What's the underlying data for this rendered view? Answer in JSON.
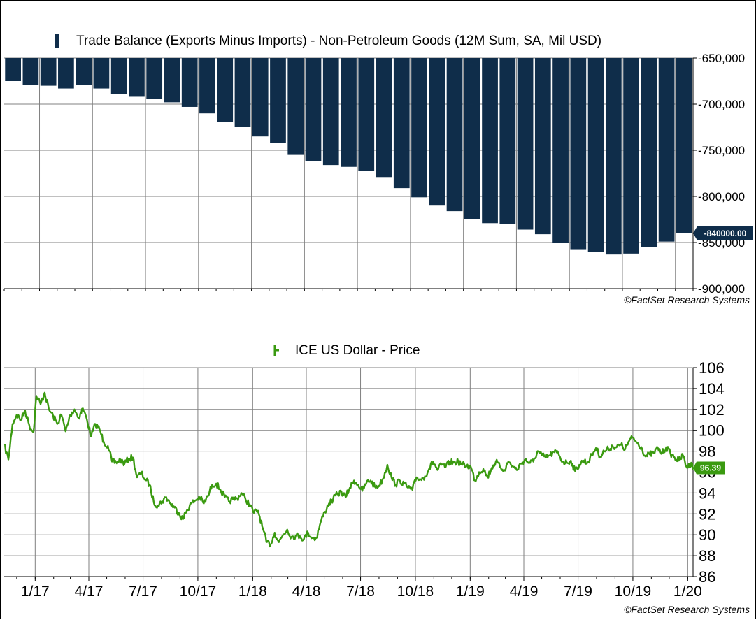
{
  "copyright": "©FactSet Research Systems",
  "chart_data": [
    {
      "type": "bar",
      "title": "Trade Balance (Exports Minus Imports) - Non-Petroleum Goods (12M Sum, SA, Mil USD)",
      "legend": "Trade Balance (Exports Minus Imports) - Non-Petroleum Goods (12M Sum, SA, Mil USD)",
      "color": "#0f2d4a",
      "ylim": [
        -900000,
        -650000
      ],
      "yticks": [
        -650000,
        -700000,
        -750000,
        -800000,
        -850000,
        -900000
      ],
      "ytick_labels": [
        "-650,000",
        "-700,000",
        "-750,000",
        "-800,000",
        "-850,000",
        "-900,000"
      ],
      "x": [
        "2016-11",
        "2016-12",
        "2017-01",
        "2017-02",
        "2017-03",
        "2017-04",
        "2017-05",
        "2017-06",
        "2017-07",
        "2017-08",
        "2017-09",
        "2017-10",
        "2017-11",
        "2017-12",
        "2018-01",
        "2018-02",
        "2018-03",
        "2018-04",
        "2018-05",
        "2018-06",
        "2018-07",
        "2018-08",
        "2018-09",
        "2018-10",
        "2018-11",
        "2018-12",
        "2019-01",
        "2019-02",
        "2019-03",
        "2019-04",
        "2019-05",
        "2019-06",
        "2019-07",
        "2019-08",
        "2019-09",
        "2019-10",
        "2019-11",
        "2019-12",
        "2020-01"
      ],
      "values": [
        -675000,
        -679000,
        -680000,
        -683000,
        -679000,
        -683000,
        -689000,
        -692000,
        -694000,
        -698000,
        -703000,
        -710000,
        -719000,
        -725000,
        -735000,
        -742000,
        -755000,
        -762000,
        -766000,
        -768000,
        -772000,
        -779000,
        -791000,
        -801000,
        -810000,
        -816000,
        -825000,
        -829000,
        -830000,
        -836000,
        -841000,
        -850000,
        -858000,
        -860000,
        -863000,
        -862000,
        -855000,
        -849000,
        -840000
      ],
      "last_value_label": "-840000.00",
      "grid": true
    },
    {
      "type": "line",
      "title": "ICE US Dollar - Price",
      "legend": "ICE US Dollar - Price",
      "color": "#3a9a10",
      "ylim": [
        86,
        106
      ],
      "yticks": [
        86,
        88,
        90,
        92,
        94,
        96,
        98,
        100,
        102,
        104,
        106
      ],
      "ytick_labels": [
        "86",
        "88",
        "90",
        "92",
        "94",
        "96",
        "98",
        "100",
        "102",
        "104",
        "106"
      ],
      "x_labels": [
        "1/17",
        "4/17",
        "7/17",
        "10/17",
        "1/18",
        "4/18",
        "7/18",
        "10/18",
        "1/19",
        "4/19",
        "7/19",
        "10/19",
        "1/20"
      ],
      "x_label_dates": [
        "2017-01-01",
        "2017-04-01",
        "2017-07-01",
        "2017-10-01",
        "2018-01-01",
        "2018-04-01",
        "2018-07-01",
        "2018-10-01",
        "2019-01-01",
        "2019-04-01",
        "2019-07-01",
        "2019-10-01",
        "2020-01-01"
      ],
      "xlim": [
        "2016-11-10",
        "2020-01-10"
      ],
      "points": [
        [
          "2016-11-10",
          98.6
        ],
        [
          "2016-11-17",
          97.2
        ],
        [
          "2016-11-24",
          100.6
        ],
        [
          "2016-12-01",
          101.5
        ],
        [
          "2016-12-08",
          101.0
        ],
        [
          "2016-12-15",
          101.9
        ],
        [
          "2016-12-22",
          100.5
        ],
        [
          "2016-12-29",
          99.8
        ],
        [
          "2017-01-03",
          103.3
        ],
        [
          "2017-01-10",
          102.5
        ],
        [
          "2017-01-17",
          103.6
        ],
        [
          "2017-01-24",
          102.0
        ],
        [
          "2017-01-31",
          101.4
        ],
        [
          "2017-02-07",
          100.6
        ],
        [
          "2017-02-14",
          101.5
        ],
        [
          "2017-02-21",
          99.9
        ],
        [
          "2017-03-01",
          101.5
        ],
        [
          "2017-03-08",
          102.0
        ],
        [
          "2017-03-15",
          101.2
        ],
        [
          "2017-03-22",
          102.1
        ],
        [
          "2017-03-29",
          101.0
        ],
        [
          "2017-04-05",
          99.4
        ],
        [
          "2017-04-12",
          100.6
        ],
        [
          "2017-04-19",
          100.1
        ],
        [
          "2017-04-26",
          98.9
        ],
        [
          "2017-05-03",
          98.5
        ],
        [
          "2017-05-10",
          97.0
        ],
        [
          "2017-05-17",
          96.9
        ],
        [
          "2017-05-24",
          97.2
        ],
        [
          "2017-05-31",
          96.8
        ],
        [
          "2017-06-07",
          97.3
        ],
        [
          "2017-06-14",
          97.4
        ],
        [
          "2017-06-21",
          95.5
        ],
        [
          "2017-06-28",
          95.9
        ],
        [
          "2017-07-05",
          95.3
        ],
        [
          "2017-07-12",
          94.8
        ],
        [
          "2017-07-19",
          93.1
        ],
        [
          "2017-07-26",
          92.8
        ],
        [
          "2017-08-02",
          93.2
        ],
        [
          "2017-08-09",
          93.6
        ],
        [
          "2017-08-16",
          93.0
        ],
        [
          "2017-08-23",
          92.6
        ],
        [
          "2017-08-30",
          92.1
        ],
        [
          "2017-09-06",
          91.5
        ],
        [
          "2017-09-13",
          92.4
        ],
        [
          "2017-09-20",
          93.0
        ],
        [
          "2017-09-27",
          93.3
        ],
        [
          "2017-10-04",
          93.6
        ],
        [
          "2017-10-11",
          93.0
        ],
        [
          "2017-10-18",
          93.7
        ],
        [
          "2017-10-25",
          94.8
        ],
        [
          "2017-11-01",
          94.9
        ],
        [
          "2017-11-08",
          94.3
        ],
        [
          "2017-11-15",
          93.6
        ],
        [
          "2017-11-22",
          93.2
        ],
        [
          "2017-11-29",
          93.4
        ],
        [
          "2017-12-06",
          93.5
        ],
        [
          "2017-12-13",
          94.0
        ],
        [
          "2017-12-20",
          93.4
        ],
        [
          "2017-12-27",
          92.9
        ],
        [
          "2018-01-03",
          92.1
        ],
        [
          "2018-01-10",
          92.3
        ],
        [
          "2018-01-17",
          90.8
        ],
        [
          "2018-01-24",
          89.3
        ],
        [
          "2018-01-31",
          89.1
        ],
        [
          "2018-02-07",
          90.2
        ],
        [
          "2018-02-14",
          89.3
        ],
        [
          "2018-02-21",
          90.0
        ],
        [
          "2018-02-28",
          90.5
        ],
        [
          "2018-03-07",
          89.8
        ],
        [
          "2018-03-14",
          89.9
        ],
        [
          "2018-03-21",
          89.9
        ],
        [
          "2018-03-28",
          89.6
        ],
        [
          "2018-04-04",
          90.2
        ],
        [
          "2018-04-11",
          89.7
        ],
        [
          "2018-04-18",
          89.7
        ],
        [
          "2018-04-25",
          91.2
        ],
        [
          "2018-05-02",
          92.2
        ],
        [
          "2018-05-09",
          93.0
        ],
        [
          "2018-05-16",
          93.4
        ],
        [
          "2018-05-23",
          93.9
        ],
        [
          "2018-05-30",
          94.1
        ],
        [
          "2018-06-06",
          93.6
        ],
        [
          "2018-06-13",
          94.5
        ],
        [
          "2018-06-20",
          95.2
        ],
        [
          "2018-06-27",
          94.8
        ],
        [
          "2018-07-04",
          94.2
        ],
        [
          "2018-07-11",
          95.0
        ],
        [
          "2018-07-18",
          95.2
        ],
        [
          "2018-07-25",
          94.6
        ],
        [
          "2018-08-01",
          94.7
        ],
        [
          "2018-08-08",
          95.4
        ],
        [
          "2018-08-15",
          96.7
        ],
        [
          "2018-08-22",
          95.5
        ],
        [
          "2018-08-29",
          94.8
        ],
        [
          "2018-09-05",
          95.2
        ],
        [
          "2018-09-12",
          94.9
        ],
        [
          "2018-09-19",
          94.5
        ],
        [
          "2018-09-26",
          94.3
        ],
        [
          "2018-10-03",
          95.5
        ],
        [
          "2018-10-10",
          95.3
        ],
        [
          "2018-10-17",
          95.6
        ],
        [
          "2018-10-24",
          96.3
        ],
        [
          "2018-10-31",
          97.0
        ],
        [
          "2018-11-07",
          96.2
        ],
        [
          "2018-11-14",
          96.7
        ],
        [
          "2018-11-21",
          96.5
        ],
        [
          "2018-11-28",
          97.0
        ],
        [
          "2018-12-05",
          96.9
        ],
        [
          "2018-12-12",
          97.0
        ],
        [
          "2018-12-19",
          96.7
        ],
        [
          "2018-12-26",
          96.6
        ],
        [
          "2019-01-02",
          96.5
        ],
        [
          "2019-01-09",
          95.2
        ],
        [
          "2019-01-16",
          96.0
        ],
        [
          "2019-01-23",
          96.3
        ],
        [
          "2019-01-30",
          95.5
        ],
        [
          "2019-02-06",
          96.4
        ],
        [
          "2019-02-13",
          97.0
        ],
        [
          "2019-02-20",
          96.5
        ],
        [
          "2019-02-27",
          96.2
        ],
        [
          "2019-03-06",
          97.0
        ],
        [
          "2019-03-13",
          96.6
        ],
        [
          "2019-03-20",
          96.2
        ],
        [
          "2019-03-27",
          96.8
        ],
        [
          "2019-04-03",
          97.2
        ],
        [
          "2019-04-10",
          96.9
        ],
        [
          "2019-04-17",
          97.0
        ],
        [
          "2019-04-24",
          98.0
        ],
        [
          "2019-05-01",
          97.6
        ],
        [
          "2019-05-08",
          97.4
        ],
        [
          "2019-05-15",
          97.6
        ],
        [
          "2019-05-22",
          97.9
        ],
        [
          "2019-05-29",
          97.8
        ],
        [
          "2019-06-05",
          97.0
        ],
        [
          "2019-06-12",
          96.9
        ],
        [
          "2019-06-19",
          97.1
        ],
        [
          "2019-06-26",
          96.1
        ],
        [
          "2019-07-03",
          96.7
        ],
        [
          "2019-07-10",
          97.1
        ],
        [
          "2019-07-17",
          96.9
        ],
        [
          "2019-07-24",
          97.6
        ],
        [
          "2019-07-31",
          98.3
        ],
        [
          "2019-08-07",
          97.5
        ],
        [
          "2019-08-14",
          98.0
        ],
        [
          "2019-08-21",
          98.2
        ],
        [
          "2019-08-28",
          98.5
        ],
        [
          "2019-09-04",
          98.4
        ],
        [
          "2019-09-11",
          98.6
        ],
        [
          "2019-09-18",
          98.2
        ],
        [
          "2019-09-25",
          99.0
        ],
        [
          "2019-10-01",
          99.3
        ],
        [
          "2019-10-08",
          98.8
        ],
        [
          "2019-10-15",
          98.4
        ],
        [
          "2019-10-22",
          97.5
        ],
        [
          "2019-10-29",
          97.7
        ],
        [
          "2019-11-05",
          97.8
        ],
        [
          "2019-11-12",
          98.3
        ],
        [
          "2019-11-19",
          97.8
        ],
        [
          "2019-11-26",
          98.4
        ],
        [
          "2019-12-03",
          97.8
        ],
        [
          "2019-12-10",
          97.4
        ],
        [
          "2019-12-17",
          97.1
        ],
        [
          "2019-12-24",
          97.6
        ],
        [
          "2019-12-31",
          96.4
        ],
        [
          "2020-01-07",
          96.9
        ],
        [
          "2020-01-10",
          96.4
        ]
      ],
      "last_value_label": "96.39",
      "grid": true
    }
  ]
}
